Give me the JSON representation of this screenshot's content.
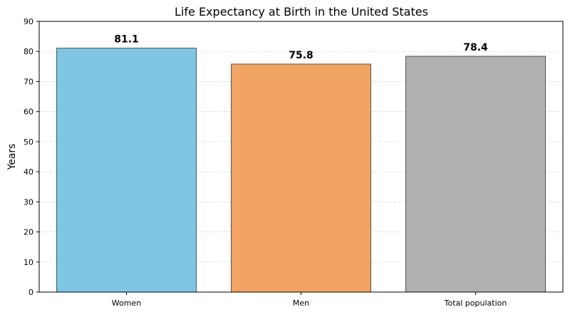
{
  "chart_data": {
    "type": "bar",
    "title": "Life Expectancy at Birth in the United States",
    "xlabel": "",
    "ylabel": "Years",
    "categories": [
      "Women",
      "Men",
      "Total population"
    ],
    "values": [
      81.1,
      75.8,
      78.4
    ],
    "data_labels": [
      "81.1",
      "75.8",
      "78.4"
    ],
    "colors": [
      "#7EC6E3",
      "#F2A464",
      "#B0B0B0"
    ],
    "ylim": [
      0,
      90
    ],
    "yticks": [
      0,
      10,
      20,
      30,
      40,
      50,
      60,
      70,
      80,
      90
    ],
    "ytick_labels": [
      "0",
      "10",
      "20",
      "30",
      "40",
      "50",
      "60",
      "70",
      "80",
      "90"
    ],
    "grid": "y-dashed"
  }
}
